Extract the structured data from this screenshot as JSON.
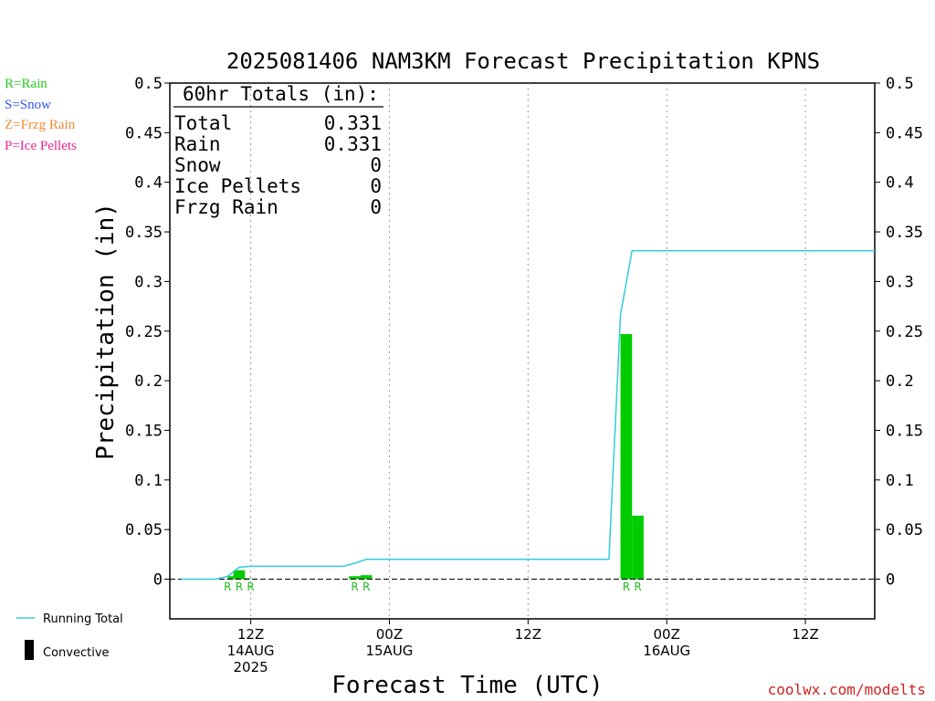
{
  "title": "2025081406 NAM3KM Forecast Precipitation KPNS",
  "ptype_legend": [
    {
      "label": "R=Rain",
      "color": "#22cc22"
    },
    {
      "label": "S=Snow",
      "color": "#3355ee"
    },
    {
      "label": "Z=Frzg Rain",
      "color": "#f08c33"
    },
    {
      "label": "P=Ice Pellets",
      "color": "#ee2288"
    }
  ],
  "totals": {
    "header": "60hr Totals (in):",
    "rows": [
      {
        "label": "Total",
        "value": "0.331"
      },
      {
        "label": "Rain",
        "value": "0.331"
      },
      {
        "label": "Snow",
        "value": "0"
      },
      {
        "label": "Ice Pellets",
        "value": "0"
      },
      {
        "label": "Frzg Rain",
        "value": "0"
      }
    ]
  },
  "series_legend": {
    "running_total": "Running Total",
    "convective": "Convective"
  },
  "footer": "coolwx.com/modelts",
  "colors": {
    "running_total": "#33ccdd",
    "precip_bar": "#00cc00",
    "rain_marker": "#22bb22",
    "grid": "#999999",
    "footer": "#cc2222"
  },
  "chart_data": {
    "type": "bar",
    "title": "2025081406 NAM3KM Forecast Precipitation KPNS",
    "xlabel": "Forecast Time (UTC)",
    "ylabel": "Precipitation (in)",
    "ylim": [
      -0.04,
      0.5
    ],
    "yticks": [
      0,
      0.05,
      0.1,
      0.15,
      0.2,
      0.25,
      0.3,
      0.35,
      0.4,
      0.45,
      0.5
    ],
    "ytick_labels": [
      "0",
      "0.05",
      "0.1",
      "0.15",
      "0.2",
      "0.25",
      "0.3",
      "0.35",
      "0.4",
      "0.45",
      "0.5"
    ],
    "x_unit": "hours after 2025-08-14 06Z",
    "xlim": [
      -1,
      60
    ],
    "grid": true,
    "xticks": [
      {
        "x": 6,
        "lines": [
          "12Z",
          "14AUG",
          "2025"
        ]
      },
      {
        "x": 18,
        "lines": [
          "00Z",
          "15AUG"
        ]
      },
      {
        "x": 30,
        "lines": [
          "12Z"
        ]
      },
      {
        "x": 42,
        "lines": [
          "00Z",
          "16AUG"
        ]
      },
      {
        "x": 54,
        "lines": [
          "12Z"
        ]
      }
    ],
    "precip_bars": [
      {
        "x": 4.5,
        "value": 0.003,
        "ptype": "R"
      },
      {
        "x": 5.0,
        "value": 0.009,
        "ptype": "R"
      },
      {
        "x": 5.5,
        "value": 0.001,
        "ptype": "R"
      },
      {
        "x": 15.0,
        "value": 0.003,
        "ptype": "R"
      },
      {
        "x": 16.0,
        "value": 0.004,
        "ptype": "R"
      },
      {
        "x": 38.5,
        "value": 0.247,
        "ptype": "R"
      },
      {
        "x": 39.5,
        "value": 0.064,
        "ptype": "R"
      }
    ],
    "ptype_markers": [
      {
        "x": 4.0,
        "label": "R"
      },
      {
        "x": 5.0,
        "label": "R"
      },
      {
        "x": 6.0,
        "label": "R"
      },
      {
        "x": 15.0,
        "label": "R"
      },
      {
        "x": 16.0,
        "label": "R"
      },
      {
        "x": 38.5,
        "label": "R"
      },
      {
        "x": 39.5,
        "label": "R"
      }
    ],
    "running_total": {
      "name": "Running Total",
      "x": [
        0,
        3,
        4,
        5,
        6,
        14,
        15,
        16,
        18,
        37,
        38,
        39,
        40,
        60
      ],
      "y": [
        0,
        0,
        0.003,
        0.012,
        0.013,
        0.013,
        0.016,
        0.02,
        0.02,
        0.02,
        0.267,
        0.331,
        0.331,
        0.331
      ]
    }
  }
}
